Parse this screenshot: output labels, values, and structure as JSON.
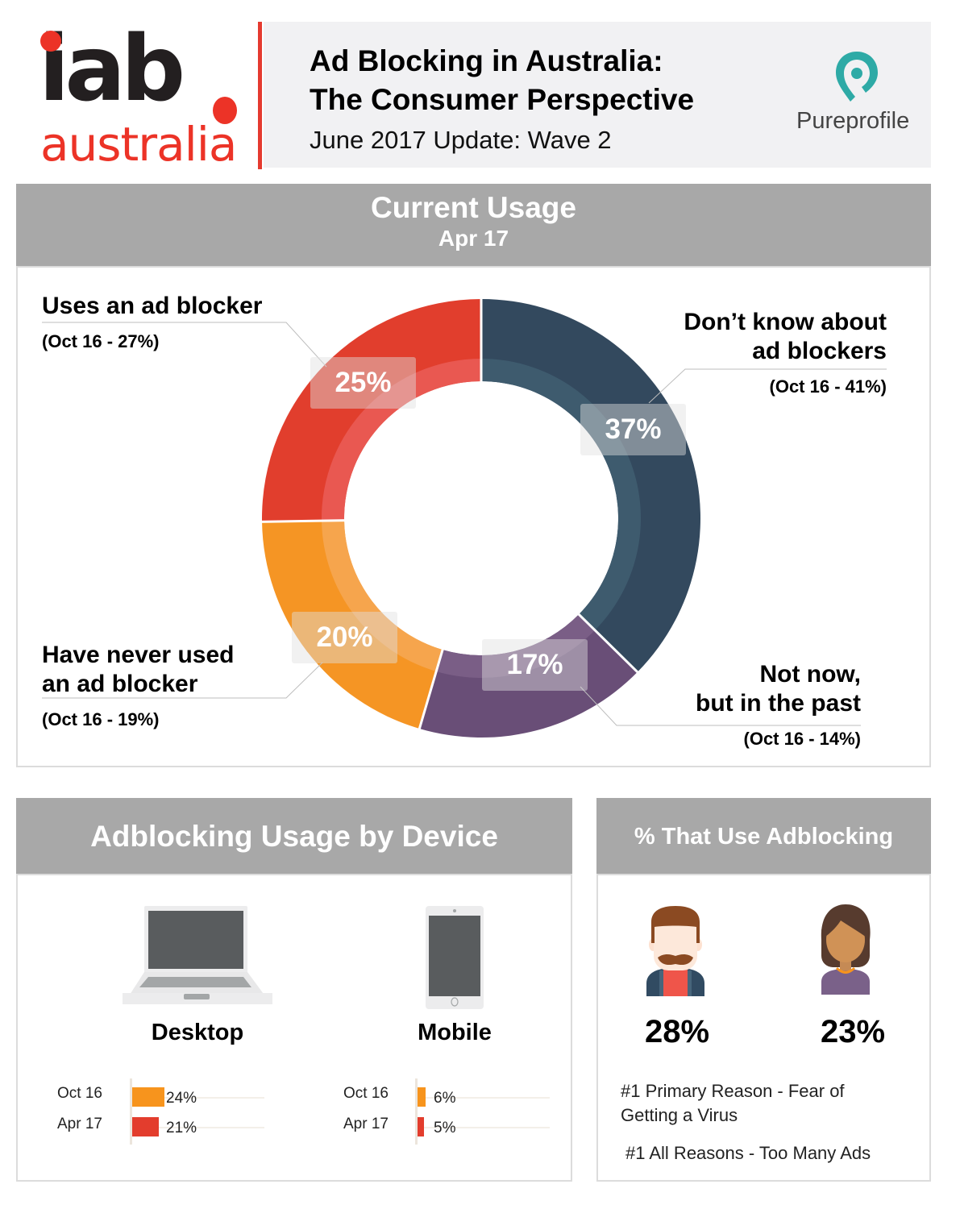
{
  "header": {
    "logo_top": "iab",
    "logo_bottom": "australia",
    "title_line1": "Ad Blocking in Australia:",
    "title_line2": "The Consumer Perspective",
    "subtitle": "June 2017 Update: Wave 2",
    "partner_logo": "Pureprofile",
    "partner_icon": "location-pin-icon"
  },
  "current_usage": {
    "title": "Current Usage",
    "period": "Apr 17",
    "segments": [
      {
        "label_line1": "Don’t know about",
        "label_line2": "ad blockers",
        "previous": "(Oct 16 - 41%)",
        "value_label": "37%",
        "value": 37,
        "color": "#33495e",
        "inner_color": "#3e5b6e"
      },
      {
        "label_line1": "Not now,",
        "label_line2": "but in the past",
        "previous": "(Oct 16 - 14%)",
        "value_label": "17%",
        "value": 17,
        "color": "#694e77",
        "inner_color": "#7a5e86"
      },
      {
        "label_line1": "Have never used",
        "label_line2": "an ad blocker",
        "previous": "(Oct 16 - 19%)",
        "value_label": "20%",
        "value": 20,
        "color": "#f59524",
        "inner_color": "#f6a54d"
      },
      {
        "label_line1": "Uses an ad blocker",
        "label_line2": "",
        "previous": "(Oct 16 - 27%)",
        "value_label": "25%",
        "value": 25,
        "color": "#e13e2d",
        "inner_color": "#e95851"
      }
    ]
  },
  "device": {
    "title": "Adblocking Usage by Device",
    "desktop": {
      "label": "Desktop",
      "icon": "laptop-icon",
      "rows": [
        {
          "period": "Oct 16",
          "value_label": "24%",
          "value": 24,
          "color": "#f7941d"
        },
        {
          "period": "Apr 17",
          "value_label": "21%",
          "value": 21,
          "color": "#e33d2d"
        }
      ]
    },
    "mobile": {
      "label": "Mobile",
      "icon": "smartphone-icon",
      "rows": [
        {
          "period": "Oct 16",
          "value_label": "6%",
          "value": 6,
          "color": "#f7941d"
        },
        {
          "period": "Apr 17",
          "value_label": "5%",
          "value": 5,
          "color": "#e33d2d"
        }
      ]
    }
  },
  "gender": {
    "title": "% That Use Adblocking",
    "male": {
      "value_label": "28%",
      "value": 28,
      "icon": "male-avatar-icon"
    },
    "female": {
      "value_label": "23%",
      "value": 23,
      "icon": "female-avatar-icon"
    },
    "reason_primary": "#1 Primary Reason - Fear of Getting a Virus",
    "reason_primary_line1": "#1 Primary Reason - Fear of",
    "reason_primary_line2": "Getting a Virus",
    "reason_all": "#1 All Reasons - Too Many Ads"
  },
  "chart_data": [
    {
      "type": "pie",
      "title": "Current Usage",
      "subtitle": "Apr 17",
      "categories": [
        "Don’t know about ad blockers",
        "Not now, but in the past",
        "Have never used an ad blocker",
        "Uses an ad blocker"
      ],
      "values": [
        37,
        17,
        20,
        25
      ],
      "series": [
        {
          "name": "Apr 17",
          "values": [
            37,
            17,
            20,
            25
          ]
        },
        {
          "name": "Oct 16",
          "values": [
            41,
            14,
            19,
            27
          ]
        }
      ],
      "colors": [
        "#33495e",
        "#694e77",
        "#f59524",
        "#e13e2d"
      ],
      "style": "donut"
    },
    {
      "type": "bar",
      "title": "Adblocking Usage by Device",
      "orientation": "horizontal",
      "categories": [
        "Desktop",
        "Mobile"
      ],
      "series": [
        {
          "name": "Oct 16",
          "values": [
            24,
            6
          ],
          "color": "#f7941d"
        },
        {
          "name": "Apr 17",
          "values": [
            21,
            5
          ],
          "color": "#e33d2d"
        }
      ],
      "xlabel": "",
      "ylabel": ""
    },
    {
      "type": "table",
      "title": "% That Use Adblocking",
      "categories": [
        "Male",
        "Female"
      ],
      "values": [
        28,
        23
      ]
    }
  ]
}
